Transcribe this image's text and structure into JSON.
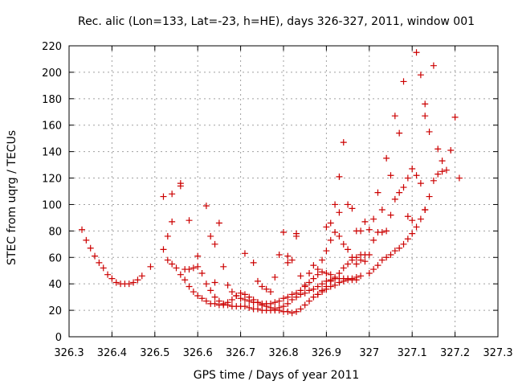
{
  "chart_data": {
    "type": "scatter",
    "title": "Rec. alic (Lon=133, Lat=-23, h=HE), days 326-327, 2011, window 001",
    "xlabel": "GPS time / Days of year 2011",
    "ylabel": "STEC from uqrg / TECUs",
    "xlim": [
      326.3,
      327.3
    ],
    "ylim": [
      0,
      220
    ],
    "x_ticks": [
      326.3,
      326.4,
      326.5,
      326.6,
      326.7,
      326.8,
      326.9,
      327,
      327.1,
      327.2,
      327.3
    ],
    "x_tick_labels": [
      "326.3",
      "326.4",
      "326.5",
      "326.6",
      "326.7",
      "326.8",
      "326.9",
      "327",
      "327.1",
      "327.2",
      "327.3"
    ],
    "y_ticks": [
      0,
      20,
      40,
      60,
      80,
      100,
      120,
      140,
      160,
      180,
      200,
      220
    ],
    "y_tick_labels": [
      "0",
      "20",
      "40",
      "60",
      "80",
      "100",
      "120",
      "140",
      "160",
      "180",
      "200",
      "220"
    ],
    "grid": true,
    "grid_style": "dotted",
    "marker": "+",
    "marker_color": "#cc0000",
    "series": [
      {
        "points": [
          [
            326.33,
            81
          ],
          [
            326.34,
            73
          ],
          [
            326.35,
            67
          ],
          [
            326.36,
            61
          ],
          [
            326.37,
            56
          ],
          [
            326.38,
            52
          ],
          [
            326.39,
            47
          ],
          [
            326.4,
            44
          ],
          [
            326.41,
            41
          ],
          [
            326.42,
            40
          ],
          [
            326.43,
            40
          ],
          [
            326.44,
            40
          ],
          [
            326.45,
            41
          ],
          [
            326.46,
            43
          ],
          [
            326.47,
            46
          ],
          [
            326.49,
            53
          ],
          [
            326.52,
            66
          ],
          [
            326.53,
            76
          ],
          [
            326.54,
            87
          ],
          [
            326.52,
            106
          ],
          [
            326.54,
            108
          ],
          [
            326.56,
            114
          ],
          [
            326.56,
            116
          ],
          [
            326.58,
            88
          ],
          [
            326.6,
            61
          ],
          [
            326.62,
            99
          ],
          [
            326.63,
            76
          ],
          [
            326.64,
            70
          ],
          [
            326.65,
            86
          ],
          [
            326.66,
            53
          ],
          [
            326.64,
            41
          ]
        ]
      },
      {
        "points": [
          [
            326.53,
            58
          ],
          [
            326.54,
            55
          ],
          [
            326.55,
            52
          ],
          [
            326.56,
            47
          ],
          [
            326.57,
            43
          ],
          [
            326.58,
            38
          ],
          [
            326.59,
            34
          ],
          [
            326.6,
            31
          ],
          [
            326.61,
            29
          ],
          [
            326.62,
            27
          ],
          [
            326.63,
            25
          ],
          [
            326.64,
            25
          ],
          [
            326.65,
            24
          ],
          [
            326.66,
            24
          ],
          [
            326.67,
            24
          ],
          [
            326.68,
            23
          ],
          [
            326.69,
            23
          ],
          [
            326.7,
            23
          ],
          [
            326.71,
            23
          ],
          [
            326.72,
            22
          ],
          [
            326.73,
            21
          ],
          [
            326.74,
            21
          ],
          [
            326.75,
            20
          ],
          [
            326.76,
            20
          ],
          [
            326.77,
            20
          ],
          [
            326.78,
            20
          ],
          [
            326.79,
            20
          ],
          [
            326.8,
            19
          ],
          [
            326.81,
            19
          ],
          [
            326.82,
            18
          ],
          [
            326.83,
            19
          ],
          [
            326.84,
            21
          ],
          [
            326.85,
            24
          ],
          [
            326.86,
            27
          ],
          [
            326.87,
            30
          ],
          [
            326.88,
            32
          ],
          [
            326.89,
            34
          ],
          [
            326.9,
            36
          ],
          [
            326.91,
            38
          ],
          [
            326.92,
            39
          ],
          [
            326.93,
            41
          ],
          [
            326.94,
            42
          ],
          [
            326.95,
            43
          ],
          [
            326.96,
            44
          ],
          [
            326.97,
            45
          ],
          [
            326.98,
            46
          ]
        ]
      },
      {
        "points": [
          [
            326.57,
            51
          ],
          [
            326.58,
            51
          ],
          [
            326.59,
            52
          ],
          [
            326.6,
            53
          ],
          [
            326.61,
            48
          ],
          [
            326.62,
            40
          ],
          [
            326.63,
            35
          ],
          [
            326.64,
            30
          ],
          [
            326.65,
            27
          ],
          [
            326.66,
            25
          ],
          [
            326.67,
            26
          ],
          [
            326.68,
            28
          ],
          [
            326.69,
            31
          ],
          [
            326.7,
            33
          ],
          [
            326.71,
            32
          ],
          [
            326.72,
            30
          ],
          [
            326.73,
            28
          ],
          [
            326.74,
            26
          ],
          [
            326.75,
            24
          ],
          [
            326.76,
            23
          ],
          [
            326.77,
            22
          ],
          [
            326.78,
            21
          ],
          [
            326.79,
            22
          ],
          [
            326.8,
            23
          ],
          [
            326.81,
            25
          ],
          [
            326.82,
            28
          ],
          [
            326.83,
            30
          ],
          [
            326.84,
            32
          ],
          [
            326.85,
            33
          ],
          [
            326.86,
            35
          ],
          [
            326.87,
            36
          ],
          [
            326.88,
            38
          ],
          [
            326.89,
            40
          ],
          [
            326.9,
            42
          ],
          [
            326.91,
            43
          ],
          [
            326.92,
            44
          ],
          [
            326.93,
            44
          ],
          [
            326.94,
            44
          ],
          [
            326.95,
            44
          ],
          [
            326.96,
            43
          ],
          [
            326.97,
            43
          ]
        ]
      },
      {
        "points": [
          [
            326.67,
            39
          ],
          [
            326.68,
            34
          ],
          [
            326.69,
            31
          ],
          [
            326.7,
            29
          ],
          [
            326.71,
            28
          ],
          [
            326.72,
            27
          ],
          [
            326.73,
            26
          ],
          [
            326.74,
            26
          ],
          [
            326.75,
            25
          ],
          [
            326.76,
            25
          ],
          [
            326.77,
            25
          ],
          [
            326.78,
            26
          ],
          [
            326.79,
            27
          ],
          [
            326.8,
            29
          ],
          [
            326.81,
            30
          ],
          [
            326.82,
            32
          ],
          [
            326.83,
            33
          ],
          [
            326.84,
            35
          ],
          [
            326.85,
            38
          ],
          [
            326.86,
            41
          ],
          [
            326.87,
            44
          ],
          [
            326.88,
            47
          ],
          [
            326.89,
            49
          ],
          [
            326.9,
            48
          ],
          [
            326.91,
            47
          ]
        ]
      },
      {
        "points": [
          [
            326.71,
            63
          ],
          [
            326.73,
            56
          ],
          [
            326.74,
            42
          ],
          [
            326.75,
            38
          ],
          [
            326.76,
            36
          ],
          [
            326.77,
            34
          ],
          [
            326.78,
            45
          ],
          [
            326.79,
            62
          ],
          [
            326.8,
            79
          ],
          [
            326.81,
            61
          ],
          [
            326.81,
            56
          ],
          [
            326.82,
            58
          ],
          [
            326.83,
            76
          ],
          [
            326.83,
            78
          ],
          [
            326.84,
            46
          ],
          [
            326.85,
            39
          ],
          [
            326.86,
            48
          ],
          [
            326.87,
            54
          ],
          [
            326.88,
            51
          ],
          [
            326.89,
            58
          ],
          [
            326.9,
            65
          ],
          [
            326.91,
            73
          ],
          [
            326.92,
            79
          ],
          [
            326.93,
            76
          ],
          [
            326.94,
            70
          ],
          [
            326.95,
            66
          ],
          [
            326.96,
            60
          ],
          [
            326.97,
            55
          ],
          [
            326.98,
            58
          ],
          [
            326.99,
            62
          ]
        ]
      },
      {
        "points": [
          [
            326.88,
            32
          ],
          [
            326.89,
            35
          ],
          [
            326.9,
            38
          ],
          [
            326.91,
            42
          ],
          [
            326.92,
            45
          ],
          [
            326.93,
            48
          ],
          [
            326.94,
            52
          ],
          [
            326.95,
            55
          ],
          [
            326.96,
            58
          ],
          [
            326.97,
            60
          ],
          [
            326.98,
            80
          ],
          [
            326.99,
            87
          ],
          [
            327.0,
            81
          ],
          [
            327.01,
            73
          ],
          [
            327.02,
            109
          ],
          [
            327.03,
            96
          ],
          [
            327.04,
            135
          ],
          [
            327.05,
            122
          ],
          [
            327.06,
            167
          ],
          [
            327.07,
            154
          ],
          [
            327.08,
            193
          ],
          [
            327.09,
            91
          ],
          [
            327.1,
            88
          ],
          [
            327.11,
            215
          ],
          [
            327.12,
            198
          ],
          [
            327.13,
            176
          ],
          [
            327.13,
            167
          ],
          [
            327.14,
            155
          ],
          [
            327.15,
            205
          ],
          [
            327.16,
            142
          ],
          [
            327.17,
            133
          ],
          [
            327.18,
            126
          ],
          [
            327.19,
            141
          ],
          [
            327.2,
            166
          ],
          [
            327.21,
            120
          ]
        ]
      },
      {
        "points": [
          [
            326.9,
            83
          ],
          [
            326.91,
            86
          ],
          [
            326.92,
            100
          ],
          [
            326.93,
            94
          ],
          [
            326.93,
            121
          ],
          [
            326.94,
            147
          ],
          [
            326.95,
            100
          ],
          [
            326.96,
            97
          ],
          [
            326.97,
            80
          ],
          [
            326.98,
            62
          ],
          [
            326.99,
            57
          ],
          [
            327.0,
            62
          ],
          [
            327.01,
            89
          ],
          [
            327.02,
            79
          ],
          [
            327.03,
            79
          ],
          [
            327.04,
            80
          ],
          [
            327.05,
            92
          ],
          [
            327.06,
            104
          ],
          [
            327.07,
            109
          ],
          [
            327.08,
            113
          ],
          [
            327.09,
            120
          ],
          [
            327.1,
            127
          ],
          [
            327.11,
            122
          ],
          [
            327.12,
            116
          ],
          [
            327.13,
            96
          ]
        ]
      },
      {
        "points": [
          [
            327.0,
            48
          ],
          [
            327.01,
            51
          ],
          [
            327.02,
            54
          ],
          [
            327.03,
            58
          ],
          [
            327.04,
            60
          ],
          [
            327.05,
            62
          ],
          [
            327.06,
            65
          ],
          [
            327.07,
            67
          ],
          [
            327.08,
            70
          ],
          [
            327.09,
            74
          ],
          [
            327.1,
            78
          ],
          [
            327.11,
            83
          ],
          [
            327.12,
            89
          ],
          [
            327.13,
            96
          ],
          [
            327.14,
            106
          ],
          [
            327.15,
            118
          ],
          [
            327.16,
            123
          ],
          [
            327.17,
            125
          ]
        ]
      }
    ]
  }
}
